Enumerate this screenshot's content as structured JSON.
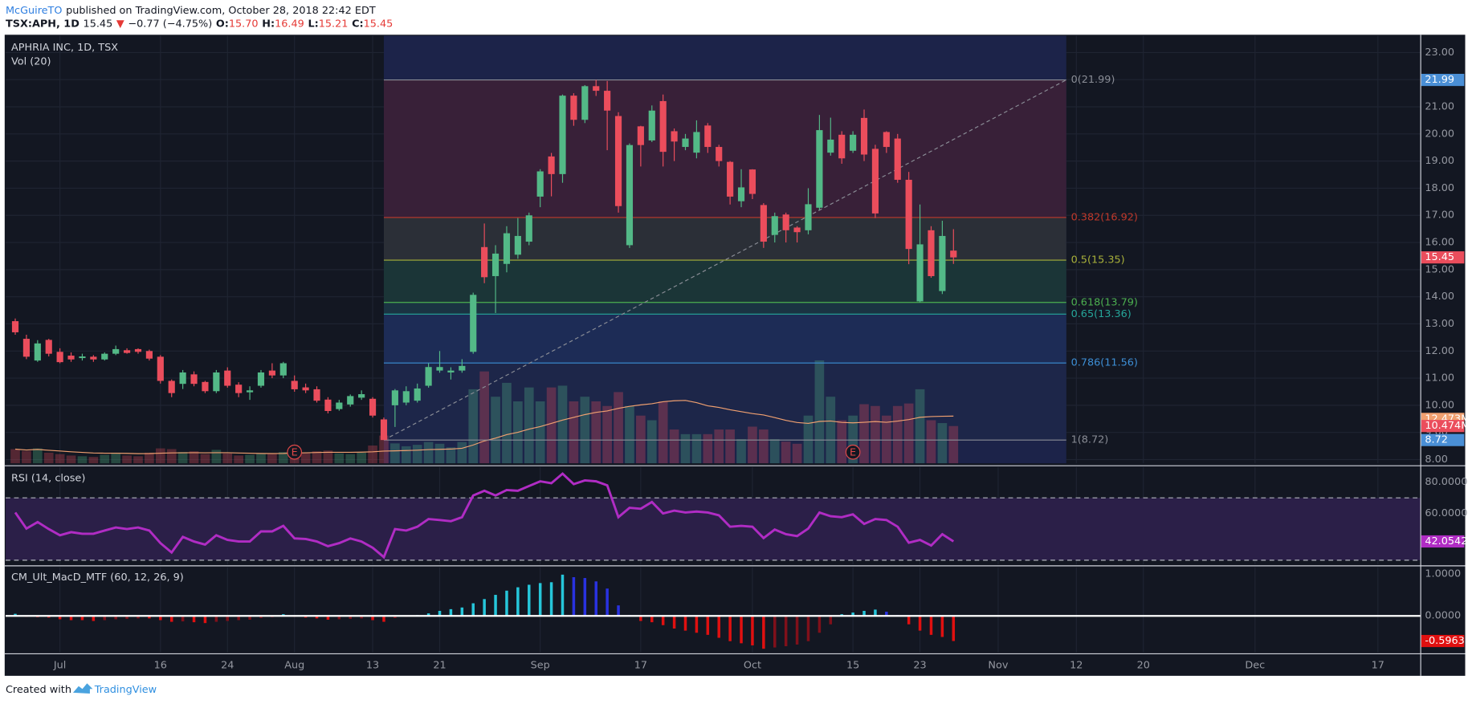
{
  "header": {
    "author": "McGuireTO",
    "published": "published on TradingView.com, October 28, 2018 22:42 EDT",
    "quote": [
      {
        "text": "TSX:APH, 1D",
        "color": "#131722",
        "bold": true
      },
      {
        "text": "15.45",
        "color": "#131722",
        "bold": false
      },
      {
        "text": "▼",
        "color": "#e53935",
        "bold": false
      },
      {
        "text": "−0.77 (−4.75%)",
        "color": "#131722",
        "bold": false
      },
      {
        "text": "O:",
        "color": "#131722",
        "bold": true
      },
      {
        "text": "15.70",
        "color": "#e53935",
        "bold": false
      },
      {
        "text": "H:",
        "color": "#131722",
        "bold": true
      },
      {
        "text": "16.49",
        "color": "#e53935",
        "bold": false
      },
      {
        "text": "L:",
        "color": "#131722",
        "bold": true
      },
      {
        "text": "15.21",
        "color": "#e53935",
        "bold": false
      },
      {
        "text": "C:",
        "color": "#131722",
        "bold": true
      },
      {
        "text": "15.45",
        "color": "#e53935",
        "bold": false
      }
    ]
  },
  "footer": {
    "created": "Created with",
    "brand": "TradingView"
  },
  "chart_data": [
    {
      "type": "candlestick",
      "title": "APHRIA INC, 1D, TSX",
      "ylim": [
        7.86,
        23.62
      ],
      "yticks": [
        {
          "value": 8,
          "label": "8.00"
        },
        {
          "value": 9,
          "label": "9.00"
        },
        {
          "value": 10,
          "label": "10.00"
        },
        {
          "value": 11,
          "label": "11.00"
        },
        {
          "value": 12,
          "label": "12.00"
        },
        {
          "value": 13,
          "label": "13.00"
        },
        {
          "value": 14,
          "label": "14.00"
        },
        {
          "value": 15,
          "label": "15.00"
        },
        {
          "value": 16,
          "label": "16.00"
        },
        {
          "value": 17,
          "label": "17.00"
        },
        {
          "value": 18,
          "label": "18.00"
        },
        {
          "value": 19,
          "label": "19.00"
        },
        {
          "value": 20,
          "label": "20.00"
        },
        {
          "value": 21,
          "label": "21.00"
        },
        {
          "value": 22,
          "label": "22.00"
        },
        {
          "value": 23,
          "label": "23.00"
        }
      ],
      "grid": true,
      "colors": {
        "up": "#53b987",
        "down": "#eb4d5c"
      },
      "ohlc": {
        "open": [
          13.1,
          12.45,
          11.65,
          12.41,
          11.97,
          11.83,
          11.74,
          11.79,
          11.69,
          11.9,
          12.03,
          12.07,
          12.0,
          11.79,
          10.9,
          10.79,
          11.14,
          10.86,
          10.52,
          11.28,
          10.76,
          10.48,
          10.72,
          11.28,
          11.1,
          10.9,
          10.66,
          10.59,
          10.21,
          9.86,
          10.03,
          10.28,
          10.24,
          9.48,
          10.0,
          10.1,
          10.17,
          10.72,
          11.28,
          11.21,
          11.28,
          11.97,
          15.83,
          14.76,
          15.21,
          15.55,
          16.03,
          17.69,
          19.17,
          18.52,
          21.41,
          20.52,
          21.76,
          21.59,
          20.66,
          15.9,
          20.28,
          19.76,
          21.21,
          20.1,
          19.52,
          19.31,
          20.31,
          19.52,
          18.97,
          17.52,
          18.69,
          17.38,
          16.28,
          17.03,
          16.55,
          16.45,
          17.28,
          19.31,
          19.97,
          19.38,
          20.59,
          19.45,
          20.07,
          19.83,
          18.31,
          13.83,
          16.45,
          14.21,
          15.7
        ],
        "high": [
          13.2,
          12.6,
          12.4,
          12.45,
          12.1,
          11.95,
          11.9,
          11.85,
          11.95,
          12.2,
          12.1,
          12.1,
          12.05,
          11.85,
          10.95,
          11.3,
          11.25,
          10.9,
          11.3,
          11.4,
          10.85,
          10.7,
          11.3,
          11.55,
          11.6,
          11.1,
          10.8,
          10.7,
          10.3,
          10.2,
          10.4,
          10.55,
          10.3,
          9.55,
          10.6,
          10.7,
          10.8,
          11.55,
          12.0,
          11.4,
          11.7,
          14.15,
          16.7,
          15.9,
          16.6,
          16.9,
          17.1,
          18.7,
          19.3,
          21.45,
          21.5,
          21.8,
          21.99,
          21.95,
          20.8,
          19.65,
          20.3,
          21.05,
          21.45,
          20.2,
          20.0,
          20.5,
          20.4,
          19.6,
          19.0,
          18.7,
          18.7,
          17.45,
          17.1,
          17.1,
          16.6,
          18.0,
          20.7,
          20.6,
          20.1,
          20.1,
          20.9,
          19.6,
          20.1,
          20.0,
          18.6,
          17.4,
          16.6,
          16.8,
          16.49
        ],
        "low": [
          12.6,
          11.7,
          11.6,
          11.8,
          11.55,
          11.6,
          11.65,
          11.6,
          11.65,
          11.85,
          11.9,
          11.9,
          11.65,
          10.8,
          10.3,
          10.6,
          10.7,
          10.45,
          10.45,
          10.65,
          10.3,
          10.2,
          10.65,
          11.0,
          11.0,
          10.5,
          10.45,
          10.1,
          9.7,
          9.8,
          9.95,
          10.2,
          9.55,
          8.72,
          9.2,
          10.0,
          10.1,
          10.65,
          11.2,
          10.95,
          11.2,
          11.9,
          14.5,
          13.4,
          14.9,
          15.4,
          15.9,
          17.3,
          17.7,
          18.2,
          20.3,
          20.4,
          21.4,
          19.4,
          17.1,
          15.8,
          18.8,
          19.7,
          18.8,
          19.0,
          19.4,
          19.1,
          19.3,
          18.8,
          17.4,
          17.3,
          17.6,
          15.8,
          16.0,
          16.0,
          16.0,
          16.3,
          17.2,
          19.2,
          18.9,
          19.3,
          19.0,
          16.9,
          19.3,
          18.2,
          15.2,
          13.79,
          14.7,
          14.1,
          15.21
        ],
        "close": [
          12.69,
          11.79,
          12.28,
          11.9,
          11.59,
          11.69,
          11.8,
          11.69,
          11.9,
          12.07,
          11.93,
          11.97,
          11.72,
          10.9,
          10.45,
          11.21,
          10.79,
          10.52,
          11.21,
          10.72,
          10.45,
          10.55,
          11.21,
          11.1,
          11.55,
          10.59,
          10.55,
          10.17,
          9.79,
          10.1,
          10.34,
          10.41,
          9.62,
          8.72,
          10.55,
          10.52,
          10.62,
          11.41,
          11.41,
          11.28,
          11.45,
          14.07,
          14.72,
          15.59,
          16.34,
          16.24,
          17.0,
          18.62,
          18.52,
          21.41,
          20.52,
          21.76,
          21.59,
          20.86,
          17.34,
          19.59,
          19.59,
          20.86,
          19.34,
          19.72,
          19.83,
          20.07,
          19.52,
          19.0,
          17.69,
          18.03,
          17.79,
          16.03,
          16.97,
          16.45,
          16.38,
          17.41,
          20.14,
          19.79,
          19.1,
          19.97,
          19.24,
          17.07,
          19.52,
          18.31,
          15.76,
          15.93,
          14.76,
          16.24,
          15.45
        ]
      },
      "volume": {
        "title": "Vol (20)",
        "ylim": [
          0,
          120
        ],
        "ma_window": 20,
        "ma_color": "#f0a070",
        "values": [
          4,
          3.5,
          4.2,
          3,
          2.6,
          2.2,
          2,
          1.8,
          2.4,
          3,
          2.2,
          2,
          3,
          4.2,
          4,
          3.2,
          3.4,
          2.6,
          3.8,
          2.8,
          2.2,
          2.4,
          2.8,
          2.6,
          3.2,
          4.6,
          3,
          3.4,
          3.6,
          2.8,
          2.6,
          3,
          5,
          7.8,
          5.6,
          4.8,
          5.2,
          6,
          5.5,
          4.5,
          6,
          20.8,
          25.8,
          18.7,
          22.6,
          17.4,
          21.3,
          17.4,
          21.3,
          21.8,
          17.4,
          18.7,
          17.4,
          16.1,
          20,
          16.1,
          13.4,
          12.1,
          17.4,
          9.5,
          8.2,
          8.2,
          8.2,
          9.5,
          9.5,
          6.8,
          10.3,
          9.5,
          6.8,
          6.1,
          5.5,
          13.4,
          28.9,
          18.7,
          12.1,
          13.4,
          16.6,
          16.1,
          13.4,
          16.1,
          16.8,
          20.8,
          12.1,
          11.3,
          10.474
        ],
        "badges": [
          {
            "value": 12.473,
            "label": "12.473M",
            "color": "#f0a070"
          },
          {
            "value": 10.474,
            "label": "10.474M",
            "color": "#eb4d5c"
          }
        ]
      },
      "fib": {
        "start": 33,
        "end": 94.1,
        "background": "#1c2349",
        "badge_color": "#4a8fd6",
        "levels": [
          {
            "price": 21.99,
            "label": "0(21.99)",
            "color": "#8a8d96",
            "fill": null,
            "badge": true
          },
          {
            "price": 16.92,
            "label": "0.382(16.92)",
            "color": "#c0392b",
            "fill": "#382038",
            "badge": false
          },
          {
            "price": 15.35,
            "label": "0.5(15.35)",
            "color": "#a8b03a",
            "fill": "#2b2f37",
            "badge": false
          },
          {
            "price": 13.79,
            "label": "0.618(13.79)",
            "color": "#4caf50",
            "fill": "#1b3537",
            "badge": false
          },
          {
            "price": 13.36,
            "label": "0.65(13.36)",
            "color": "#26a69a",
            "fill": "#1a3342",
            "badge": false
          },
          {
            "price": 11.56,
            "label": "0.786(11.56)",
            "color": "#3d8fd6",
            "fill": "#1d2c56",
            "badge": false
          },
          {
            "price": 8.72,
            "label": "1(8.72)",
            "color": "#8a8d96",
            "fill": "#1d2649",
            "badge": true
          }
        ]
      },
      "earnings": [
        {
          "index": 25,
          "label": "E"
        },
        {
          "index": 75,
          "label": "E"
        }
      ]
    },
    {
      "type": "line",
      "title": "RSI (14, close)",
      "color": "#b02cc4",
      "ylim": [
        27.3,
        89.7
      ],
      "yticks": [
        {
          "value": 60,
          "label": "60.0000"
        },
        {
          "value": 80,
          "label": "80.0000"
        }
      ],
      "bands": [
        70,
        30
      ],
      "band_fill": "#2b1f48",
      "values": [
        60.6,
        50.3,
        54.5,
        50,
        46,
        48,
        47,
        47,
        49,
        51,
        50,
        51,
        49,
        41,
        35,
        45,
        42,
        40,
        46,
        43,
        42,
        42,
        48.5,
        48.5,
        52,
        44,
        43.6,
        42,
        39,
        41,
        44,
        42,
        38,
        32,
        50,
        49,
        51.5,
        56.4,
        55.8,
        55,
        57.6,
        71.5,
        74.5,
        71.5,
        75,
        74.5,
        77.6,
        80.6,
        79.4,
        85.5,
        78.8,
        81.2,
        80.6,
        78,
        57.6,
        63.6,
        63,
        67.3,
        60,
        61.8,
        60.6,
        61.2,
        60.6,
        58.8,
        51.5,
        52,
        51.5,
        44.2,
        49.7,
        46.7,
        45.5,
        50.3,
        60.6,
        58.2,
        57.6,
        59.4,
        53.3,
        56.4,
        55.8,
        51.5,
        41.2,
        43,
        39.4,
        46.7,
        42.0542
      ]
    },
    {
      "type": "histogram",
      "title": "CM_Ult_MacD_MTF (60, 12, 26, 9)",
      "ylim": [
        -0.867,
        1.156
      ],
      "yticks": [
        {
          "value": 0,
          "label": "0.0000"
        },
        {
          "value": 1,
          "label": "1.0000"
        }
      ],
      "colors": {
        "up_rising": "#26c6da",
        "up_falling": "#2932e1",
        "down_falling": "#e01010",
        "down_rising": "#80101a"
      },
      "values": [
        0.05,
        -0.02,
        -0.03,
        -0.04,
        -0.08,
        -0.1,
        -0.1,
        -0.12,
        -0.1,
        -0.08,
        -0.07,
        -0.06,
        -0.06,
        -0.1,
        -0.14,
        -0.13,
        -0.15,
        -0.17,
        -0.14,
        -0.12,
        -0.1,
        -0.09,
        -0.05,
        -0.03,
        0.04,
        -0.02,
        -0.04,
        -0.06,
        -0.09,
        -0.08,
        -0.07,
        -0.06,
        -0.1,
        -0.14,
        -0.05,
        -0.02,
        0.02,
        0.06,
        0.12,
        0.16,
        0.2,
        0.3,
        0.4,
        0.5,
        0.6,
        0.68,
        0.74,
        0.78,
        0.8,
        0.98,
        0.92,
        0.9,
        0.82,
        0.65,
        0.25,
        0.02,
        -0.12,
        -0.15,
        -0.22,
        -0.3,
        -0.35,
        -0.4,
        -0.45,
        -0.52,
        -0.6,
        -0.65,
        -0.7,
        -0.78,
        -0.75,
        -0.72,
        -0.68,
        -0.6,
        -0.4,
        -0.2,
        0.04,
        0.08,
        0.12,
        0.15,
        0.1,
        0.02,
        -0.2,
        -0.35,
        -0.45,
        -0.5,
        -0.5963
      ],
      "xticks": [
        {
          "value": 4,
          "label": "Jul"
        },
        {
          "value": 13,
          "label": "16"
        },
        {
          "value": 19,
          "label": "24"
        },
        {
          "value": 25,
          "label": "Aug"
        },
        {
          "value": 32,
          "label": "13"
        },
        {
          "value": 38,
          "label": "21"
        },
        {
          "value": 47,
          "label": "Sep"
        },
        {
          "value": 56,
          "label": "17"
        },
        {
          "value": 66,
          "label": "Oct"
        },
        {
          "value": 75,
          "label": "15"
        },
        {
          "value": 81,
          "label": "23"
        },
        {
          "value": 88,
          "label": "Nov"
        },
        {
          "value": 95,
          "label": "12"
        },
        {
          "value": 101,
          "label": "20"
        },
        {
          "value": 111,
          "label": "Dec"
        },
        {
          "value": 122,
          "label": "17"
        }
      ]
    }
  ]
}
